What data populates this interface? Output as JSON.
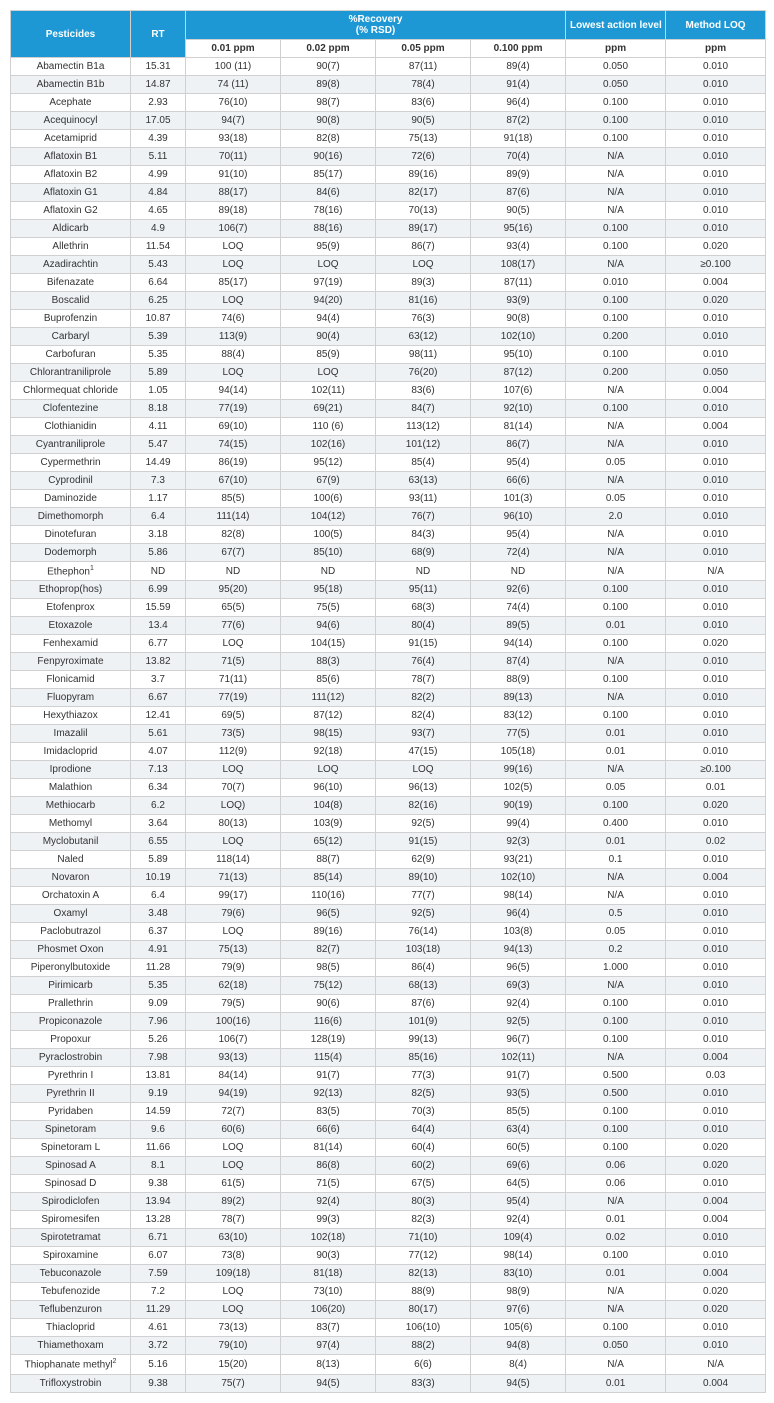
{
  "header": {
    "pesticides": "Pesticides",
    "rt": "RT",
    "recovery": "%Recovery",
    "recovery_sub": "(% RSD)",
    "lal": "Lowest action level",
    "loq": "Method LOQ",
    "ppm": "ppm",
    "c001": "0.01 ppm",
    "c002": "0.02 ppm",
    "c005": "0.05 ppm",
    "c010": "0.100 ppm"
  },
  "rows": [
    {
      "name": "Abamectin B1a",
      "rt": "15.31",
      "r1": "100 (11)",
      "r2": "90(7)",
      "r3": "87(11)",
      "r4": "89(4)",
      "lal": "0.050",
      "loq": "0.010"
    },
    {
      "name": "Abamectin B1b",
      "rt": "14.87",
      "r1": "74 (11)",
      "r2": "89(8)",
      "r3": "78(4)",
      "r4": "91(4)",
      "lal": "0.050",
      "loq": "0.010"
    },
    {
      "name": "Acephate",
      "rt": "2.93",
      "r1": "76(10)",
      "r2": "98(7)",
      "r3": "83(6)",
      "r4": "96(4)",
      "lal": "0.100",
      "loq": "0.010"
    },
    {
      "name": "Acequinocyl",
      "rt": "17.05",
      "r1": "94(7)",
      "r2": "90(8)",
      "r3": "90(5)",
      "r4": "87(2)",
      "lal": "0.100",
      "loq": "0.010"
    },
    {
      "name": "Acetamiprid",
      "rt": "4.39",
      "r1": "93(18)",
      "r2": "82(8)",
      "r3": "75(13)",
      "r4": "91(18)",
      "lal": "0.100",
      "loq": "0.010"
    },
    {
      "name": "Aflatoxin B1",
      "rt": "5.11",
      "r1": "70(11)",
      "r2": "90(16)",
      "r3": "72(6)",
      "r4": "70(4)",
      "lal": "N/A",
      "loq": "0.010"
    },
    {
      "name": "Aflatoxin B2",
      "rt": "4.99",
      "r1": "91(10)",
      "r2": "85(17)",
      "r3": "89(16)",
      "r4": "89(9)",
      "lal": "N/A",
      "loq": "0.010"
    },
    {
      "name": "Aflatoxin G1",
      "rt": "4.84",
      "r1": "88(17)",
      "r2": "84(6)",
      "r3": "82(17)",
      "r4": "87(6)",
      "lal": "N/A",
      "loq": "0.010"
    },
    {
      "name": "Aflatoxin G2",
      "rt": "4.65",
      "r1": "89(18)",
      "r2": "78(16)",
      "r3": "70(13)",
      "r4": "90(5)",
      "lal": "N/A",
      "loq": "0.010"
    },
    {
      "name": "Aldicarb",
      "rt": "4.9",
      "r1": "106(7)",
      "r2": "88(16)",
      "r3": "89(17)",
      "r4": "95(16)",
      "lal": "0.100",
      "loq": "0.010"
    },
    {
      "name": "Allethrin",
      "rt": "11.54",
      "r1": "LOQ",
      "r2": "95(9)",
      "r3": "86(7)",
      "r4": "93(4)",
      "lal": "0.100",
      "loq": "0.020"
    },
    {
      "name": "Azadirachtin",
      "rt": "5.43",
      "r1": "LOQ",
      "r2": "LOQ",
      "r3": "LOQ",
      "r4": "108(17)",
      "lal": "N/A",
      "loq": "≥0.100"
    },
    {
      "name": "Bifenazate",
      "rt": "6.64",
      "r1": "85(17)",
      "r2": "97(19)",
      "r3": "89(3)",
      "r4": "87(11)",
      "lal": "0.010",
      "loq": "0.004"
    },
    {
      "name": "Boscalid",
      "rt": "6.25",
      "r1": "LOQ",
      "r2": "94(20)",
      "r3": "81(16)",
      "r4": "93(9)",
      "lal": "0.100",
      "loq": "0.020"
    },
    {
      "name": "Buprofenzin",
      "rt": "10.87",
      "r1": "74(6)",
      "r2": "94(4)",
      "r3": "76(3)",
      "r4": "90(8)",
      "lal": "0.100",
      "loq": "0.010"
    },
    {
      "name": "Carbaryl",
      "rt": "5.39",
      "r1": "113(9)",
      "r2": "90(4)",
      "r3": "63(12)",
      "r4": "102(10)",
      "lal": "0.200",
      "loq": "0.010"
    },
    {
      "name": "Carbofuran",
      "rt": "5.35",
      "r1": "88(4)",
      "r2": "85(9)",
      "r3": "98(11)",
      "r4": "95(10)",
      "lal": "0.100",
      "loq": "0.010"
    },
    {
      "name": "Chlorantraniliprole",
      "rt": "5.89",
      "r1": "LOQ",
      "r2": "LOQ",
      "r3": "76(20)",
      "r4": "87(12)",
      "lal": "0.200",
      "loq": "0.050"
    },
    {
      "name": "Chlormequat chloride",
      "rt": "1.05",
      "r1": "94(14)",
      "r2": "102(11)",
      "r3": "83(6)",
      "r4": "107(6)",
      "lal": "N/A",
      "loq": "0.004"
    },
    {
      "name": "Clofentezine",
      "rt": "8.18",
      "r1": "77(19)",
      "r2": "69(21)",
      "r3": "84(7)",
      "r4": "92(10)",
      "lal": "0.100",
      "loq": "0.010"
    },
    {
      "name": "Clothianidin",
      "rt": "4.11",
      "r1": "69(10)",
      "r2": "110 (6)",
      "r3": "113(12)",
      "r4": "81(14)",
      "lal": "N/A",
      "loq": "0.004"
    },
    {
      "name": "Cyantraniliprole",
      "rt": "5.47",
      "r1": "74(15)",
      "r2": "102(16)",
      "r3": "101(12)",
      "r4": "86(7)",
      "lal": "N/A",
      "loq": "0.010"
    },
    {
      "name": "Cypermethrin",
      "rt": "14.49",
      "r1": "86(19)",
      "r2": "95(12)",
      "r3": "85(4)",
      "r4": "95(4)",
      "lal": "0.05",
      "loq": "0.010"
    },
    {
      "name": "Cyprodinil",
      "rt": "7.3",
      "r1": "67(10)",
      "r2": "67(9)",
      "r3": "63(13)",
      "r4": "66(6)",
      "lal": "N/A",
      "loq": "0.010"
    },
    {
      "name": "Daminozide",
      "rt": "1.17",
      "r1": "85(5)",
      "r2": "100(6)",
      "r3": "93(11)",
      "r4": "101(3)",
      "lal": "0.05",
      "loq": "0.010"
    },
    {
      "name": "Dimethomorph",
      "rt": "6.4",
      "r1": "111(14)",
      "r2": "104(12)",
      "r3": "76(7)",
      "r4": "96(10)",
      "lal": "2.0",
      "loq": "0.010"
    },
    {
      "name": "Dinotefuran",
      "rt": "3.18",
      "r1": "82(8)",
      "r2": "100(5)",
      "r3": "84(3)",
      "r4": "95(4)",
      "lal": "N/A",
      "loq": "0.010"
    },
    {
      "name": "Dodemorph",
      "rt": "5.86",
      "r1": "67(7)",
      "r2": "85(10)",
      "r3": "68(9)",
      "r4": "72(4)",
      "lal": "N/A",
      "loq": "0.010"
    },
    {
      "name": "Ethephon",
      "sup": "1",
      "rt": "ND",
      "r1": "ND",
      "r2": "ND",
      "r3": "ND",
      "r4": "ND",
      "lal": "N/A",
      "loq": "N/A"
    },
    {
      "name": "Ethoprop(hos)",
      "rt": "6.99",
      "r1": "95(20)",
      "r2": "95(18)",
      "r3": "95(11)",
      "r4": "92(6)",
      "lal": "0.100",
      "loq": "0.010"
    },
    {
      "name": "Etofenprox",
      "rt": "15.59",
      "r1": "65(5)",
      "r2": "75(5)",
      "r3": "68(3)",
      "r4": "74(4)",
      "lal": "0.100",
      "loq": "0.010"
    },
    {
      "name": "Etoxazole",
      "rt": "13.4",
      "r1": "77(6)",
      "r2": "94(6)",
      "r3": "80(4)",
      "r4": "89(5)",
      "lal": "0.01",
      "loq": "0.010"
    },
    {
      "name": "Fenhexamid",
      "rt": "6.77",
      "r1": "LOQ",
      "r2": "104(15)",
      "r3": "91(15)",
      "r4": "94(14)",
      "lal": "0.100",
      "loq": "0.020"
    },
    {
      "name": "Fenpyroximate",
      "rt": "13.82",
      "r1": "71(5)",
      "r2": "88(3)",
      "r3": "76(4)",
      "r4": "87(4)",
      "lal": "N/A",
      "loq": "0.010"
    },
    {
      "name": "Flonicamid",
      "rt": "3.7",
      "r1": "71(11)",
      "r2": "85(6)",
      "r3": "78(7)",
      "r4": "88(9)",
      "lal": "0.100",
      "loq": "0.010"
    },
    {
      "name": "Fluopyram",
      "rt": "6.67",
      "r1": "77(19)",
      "r2": "111(12)",
      "r3": "82(2)",
      "r4": "89(13)",
      "lal": "N/A",
      "loq": "0.010"
    },
    {
      "name": "Hexythiazox",
      "rt": "12.41",
      "r1": "69(5)",
      "r2": "87(12)",
      "r3": "82(4)",
      "r4": "83(12)",
      "lal": "0.100",
      "loq": "0.010"
    },
    {
      "name": "Imazalil",
      "rt": "5.61",
      "r1": "73(5)",
      "r2": "98(15)",
      "r3": "93(7)",
      "r4": "77(5)",
      "lal": "0.01",
      "loq": "0.010"
    },
    {
      "name": "Imidacloprid",
      "rt": "4.07",
      "r1": "112(9)",
      "r2": "92(18)",
      "r3": "47(15)",
      "r4": "105(18)",
      "lal": "0.01",
      "loq": "0.010"
    },
    {
      "name": "Iprodione",
      "rt": "7.13",
      "r1": "LOQ",
      "r2": "LOQ",
      "r3": "LOQ",
      "r4": "99(16)",
      "lal": "N/A",
      "loq": "≥0.100"
    },
    {
      "name": "Malathion",
      "rt": "6.34",
      "r1": "70(7)",
      "r2": "96(10)",
      "r3": "96(13)",
      "r4": "102(5)",
      "lal": "0.05",
      "loq": "0.01"
    },
    {
      "name": "Methiocarb",
      "rt": "6.2",
      "r1": "LOQ)",
      "r2": "104(8)",
      "r3": "82(16)",
      "r4": "90(19)",
      "lal": "0.100",
      "loq": "0.020"
    },
    {
      "name": "Methomyl",
      "rt": "3.64",
      "r1": "80(13)",
      "r2": "103(9)",
      "r3": "92(5)",
      "r4": "99(4)",
      "lal": "0.400",
      "loq": "0.010"
    },
    {
      "name": "Myclobutanil",
      "rt": "6.55",
      "r1": "LOQ",
      "r2": "65(12)",
      "r3": "91(15)",
      "r4": "92(3)",
      "lal": "0.01",
      "loq": "0.02"
    },
    {
      "name": "Naled",
      "rt": "5.89",
      "r1": "118(14)",
      "r2": "88(7)",
      "r3": "62(9)",
      "r4": "93(21)",
      "lal": "0.1",
      "loq": "0.010"
    },
    {
      "name": "Novaron",
      "rt": "10.19",
      "r1": "71(13)",
      "r2": "85(14)",
      "r3": "89(10)",
      "r4": "102(10)",
      "lal": "N/A",
      "loq": "0.004"
    },
    {
      "name": "Orchatoxin A",
      "rt": "6.4",
      "r1": "99(17)",
      "r2": "110(16)",
      "r3": "77(7)",
      "r4": "98(14)",
      "lal": "N/A",
      "loq": "0.010"
    },
    {
      "name": "Oxamyl",
      "rt": "3.48",
      "r1": "79(6)",
      "r2": "96(5)",
      "r3": "92(5)",
      "r4": "96(4)",
      "lal": "0.5",
      "loq": "0.010"
    },
    {
      "name": "Paclobutrazol",
      "rt": "6.37",
      "r1": "LOQ",
      "r2": "89(16)",
      "r3": "76(14)",
      "r4": "103(8)",
      "lal": "0.05",
      "loq": "0.010"
    },
    {
      "name": "Phosmet Oxon",
      "rt": "4.91",
      "r1": "75(13)",
      "r2": "82(7)",
      "r3": "103(18)",
      "r4": "94(13)",
      "lal": "0.2",
      "loq": "0.010"
    },
    {
      "name": "Piperonylbutoxide",
      "rt": "11.28",
      "r1": "79(9)",
      "r2": "98(5)",
      "r3": "86(4)",
      "r4": "96(5)",
      "lal": "1.000",
      "loq": "0.010"
    },
    {
      "name": "Pirimicarb",
      "rt": "5.35",
      "r1": "62(18)",
      "r2": "75(12)",
      "r3": "68(13)",
      "r4": "69(3)",
      "lal": "N/A",
      "loq": "0.010"
    },
    {
      "name": "Prallethrin",
      "rt": "9.09",
      "r1": "79(5)",
      "r2": "90(6)",
      "r3": "87(6)",
      "r4": "92(4)",
      "lal": "0.100",
      "loq": "0.010"
    },
    {
      "name": "Propiconazole",
      "rt": "7.96",
      "r1": "100(16)",
      "r2": "116(6)",
      "r3": "101(9)",
      "r4": "92(5)",
      "lal": "0.100",
      "loq": "0.010"
    },
    {
      "name": "Propoxur",
      "rt": "5.26",
      "r1": "106(7)",
      "r2": "128(19)",
      "r3": "99(13)",
      "r4": "96(7)",
      "lal": "0.100",
      "loq": "0.010"
    },
    {
      "name": "Pyraclostrobin",
      "rt": "7.98",
      "r1": "93(13)",
      "r2": "115(4)",
      "r3": "85(16)",
      "r4": "102(11)",
      "lal": "N/A",
      "loq": "0.004"
    },
    {
      "name": "Pyrethrin I",
      "rt": "13.81",
      "r1": "84(14)",
      "r2": "91(7)",
      "r3": "77(3)",
      "r4": "91(7)",
      "lal": "0.500",
      "loq": "0.03"
    },
    {
      "name": "Pyrethrin II",
      "rt": "9.19",
      "r1": "94(19)",
      "r2": "92(13)",
      "r3": "82(5)",
      "r4": "93(5)",
      "lal": "0.500",
      "loq": "0.010"
    },
    {
      "name": "Pyridaben",
      "rt": "14.59",
      "r1": "72(7)",
      "r2": "83(5)",
      "r3": "70(3)",
      "r4": "85(5)",
      "lal": "0.100",
      "loq": "0.010"
    },
    {
      "name": "Spinetoram",
      "rt": "9.6",
      "r1": "60(6)",
      "r2": "66(6)",
      "r3": "64(4)",
      "r4": "63(4)",
      "lal": "0.100",
      "loq": "0.010"
    },
    {
      "name": "Spinetoram L",
      "rt": "11.66",
      "r1": "LOQ",
      "r2": "81(14)",
      "r3": "60(4)",
      "r4": "60(5)",
      "lal": "0.100",
      "loq": "0.020"
    },
    {
      "name": "Spinosad A",
      "rt": "8.1",
      "r1": "LOQ",
      "r2": "86(8)",
      "r3": "60(2)",
      "r4": "69(6)",
      "lal": "0.06",
      "loq": "0.020"
    },
    {
      "name": "Spinosad D",
      "rt": "9.38",
      "r1": "61(5)",
      "r2": "71(5)",
      "r3": "67(5)",
      "r4": "64(5)",
      "lal": "0.06",
      "loq": "0.010"
    },
    {
      "name": "Spirodiclofen",
      "rt": "13.94",
      "r1": "89(2)",
      "r2": "92(4)",
      "r3": "80(3)",
      "r4": "95(4)",
      "lal": "N/A",
      "loq": "0.004"
    },
    {
      "name": "Spiromesifen",
      "rt": "13.28",
      "r1": "78(7)",
      "r2": "99(3)",
      "r3": "82(3)",
      "r4": "92(4)",
      "lal": "0.01",
      "loq": "0.004"
    },
    {
      "name": "Spirotetramat",
      "rt": "6.71",
      "r1": "63(10)",
      "r2": "102(18)",
      "r3": "71(10)",
      "r4": "109(4)",
      "lal": "0.02",
      "loq": "0.010"
    },
    {
      "name": "Spiroxamine",
      "rt": "6.07",
      "r1": "73(8)",
      "r2": "90(3)",
      "r3": "77(12)",
      "r4": "98(14)",
      "lal": "0.100",
      "loq": "0.010"
    },
    {
      "name": "Tebuconazole",
      "rt": "7.59",
      "r1": "109(18)",
      "r2": "81(18)",
      "r3": "82(13)",
      "r4": "83(10)",
      "lal": "0.01",
      "loq": "0.004"
    },
    {
      "name": "Tebufenozide",
      "rt": "7.2",
      "r1": "LOQ",
      "r2": "73(10)",
      "r3": "88(9)",
      "r4": "98(9)",
      "lal": "N/A",
      "loq": "0.020"
    },
    {
      "name": "Teflubenzuron",
      "rt": "11.29",
      "r1": "LOQ",
      "r2": "106(20)",
      "r3": "80(17)",
      "r4": "97(6)",
      "lal": "N/A",
      "loq": "0.020"
    },
    {
      "name": "Thiacloprid",
      "rt": "4.61",
      "r1": "73(13)",
      "r2": "83(7)",
      "r3": "106(10)",
      "r4": "105(6)",
      "lal": "0.100",
      "loq": "0.010"
    },
    {
      "name": "Thiamethoxam",
      "rt": "3.72",
      "r1": "79(10)",
      "r2": "97(4)",
      "r3": "88(2)",
      "r4": "94(8)",
      "lal": "0.050",
      "loq": "0.010"
    },
    {
      "name": "Thiophanate methyl",
      "sup": "2",
      "rt": "5.16",
      "r1": "15(20)",
      "r2": "8(13)",
      "r3": "6(6)",
      "r4": "8(4)",
      "lal": "N/A",
      "loq": "N/A"
    },
    {
      "name": "Trifloxystrobin",
      "rt": "9.38",
      "r1": "75(7)",
      "r2": "94(5)",
      "r3": "83(3)",
      "r4": "94(5)",
      "lal": "0.01",
      "loq": "0.004"
    }
  ]
}
